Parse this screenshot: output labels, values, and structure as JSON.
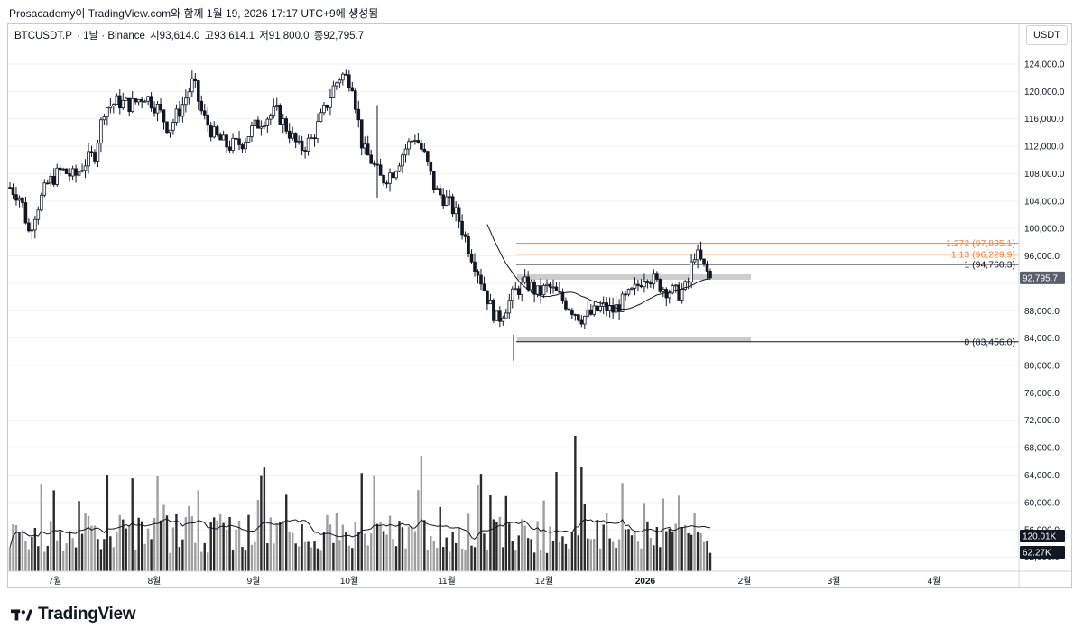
{
  "header": {
    "text": "Prosacademy이 TradingView.com와 함께 1월 19, 2026 17:17 UTC+9에 생성됨"
  },
  "legend": {
    "symbol": "BTCUSDT.P",
    "interval": "· 1날 · Binance",
    "open": "시93,614.0",
    "high": "고93,614.1",
    "low": "저91,800.0",
    "close": "종92,795.7"
  },
  "currency": "USDT",
  "price_axis": {
    "ticks": [
      "124,000.0",
      "120,000.0",
      "116,000.0",
      "112,000.0",
      "108,000.0",
      "104,000.0",
      "100,000.0",
      "96,000.0",
      "88,000.0",
      "84,000.0",
      "80,000.0",
      "76,000.0",
      "72,000.0",
      "68,000.0",
      "64,000.0",
      "60,000.0",
      "56,000.0",
      "52,000.0"
    ]
  },
  "time_axis": {
    "labels": [
      "7월",
      "8월",
      "9월",
      "10월",
      "11월",
      "12월",
      "2026",
      "2월",
      "3월",
      "4월"
    ]
  },
  "fib_levels": [
    {
      "label": "1.272 (97,835.1)",
      "price": 97835.1,
      "color": "#f0843a"
    },
    {
      "label": "1.13 (96,229.9)",
      "price": 96229.9,
      "color": "#f0843a"
    },
    {
      "label": "1 (94,760.3)",
      "price": 94760.3,
      "color": "#131722"
    },
    {
      "label": "0 (83,456.0)",
      "price": 83456.0,
      "color": "#131722"
    }
  ],
  "current_price": {
    "label": "92,795.7",
    "price": 92795.7
  },
  "volume_badges": {
    "ma": "120.01K",
    "volume": "62.27K"
  },
  "logo": {
    "text": "TradingView"
  },
  "colors": {
    "up": "#131722",
    "down": "#131722",
    "fib_orange": "#f0843a",
    "zone": "#c8c8c8",
    "bg": "#ffffff"
  }
}
